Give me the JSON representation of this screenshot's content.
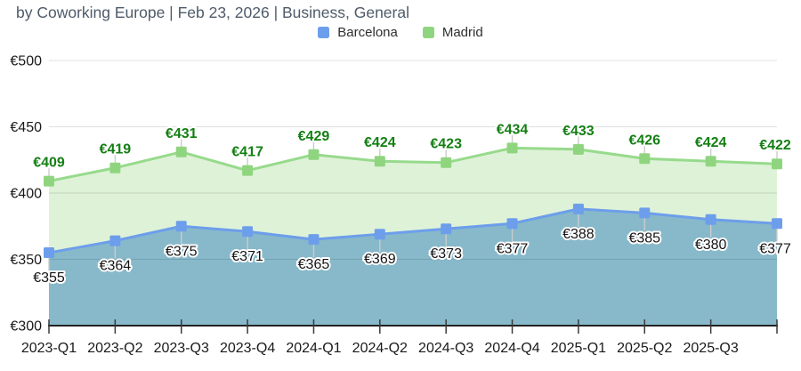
{
  "header": {
    "title": "by Coworking Europe | Feb 23, 2026 | Business, General"
  },
  "legend": {
    "items": [
      {
        "label": "Barcelona",
        "color": "#6d9eeb"
      },
      {
        "label": "Madrid",
        "color": "#8fd57f"
      }
    ]
  },
  "colors": {
    "axis_line": "#222222",
    "tick_mark": "#3a3a3a",
    "tick_text": "#1a1a1a",
    "grid_line": "rgba(0,0,0,0.12)",
    "connector": "#cccccc",
    "title_text": "#4e5b6a"
  },
  "chart_data": {
    "type": "area",
    "title": "",
    "categories": [
      "2023-Q1",
      "2023-Q2",
      "2023-Q3",
      "2023-Q4",
      "2024-Q1",
      "2024-Q2",
      "2024-Q3",
      "2024-Q4",
      "2025-Q1",
      "2025-Q2",
      "2025-Q3",
      ""
    ],
    "series": [
      {
        "name": "Madrid",
        "values": [
          409,
          419,
          431,
          417,
          429,
          424,
          423,
          434,
          433,
          426,
          424,
          422
        ],
        "line_color": "#97da8c",
        "marker_color": "#8fd57f",
        "fill_color": "#def2d7",
        "label_color": "#137f13",
        "label_weight": "bold",
        "label_side": "above"
      },
      {
        "name": "Barcelona",
        "values": [
          355,
          364,
          375,
          371,
          365,
          369,
          373,
          377,
          388,
          385,
          380,
          377
        ],
        "line_color": "#6d9eeb",
        "marker_color": "#6d9eeb",
        "fill_color": "#87b9ca",
        "label_color": "#141414",
        "label_weight": "normal",
        "label_side": "below"
      }
    ],
    "value_prefix": "€",
    "y_ticks": [
      500,
      450,
      400,
      350,
      300
    ],
    "ylim": [
      300,
      500
    ],
    "grid": true,
    "legend_position": "top"
  }
}
